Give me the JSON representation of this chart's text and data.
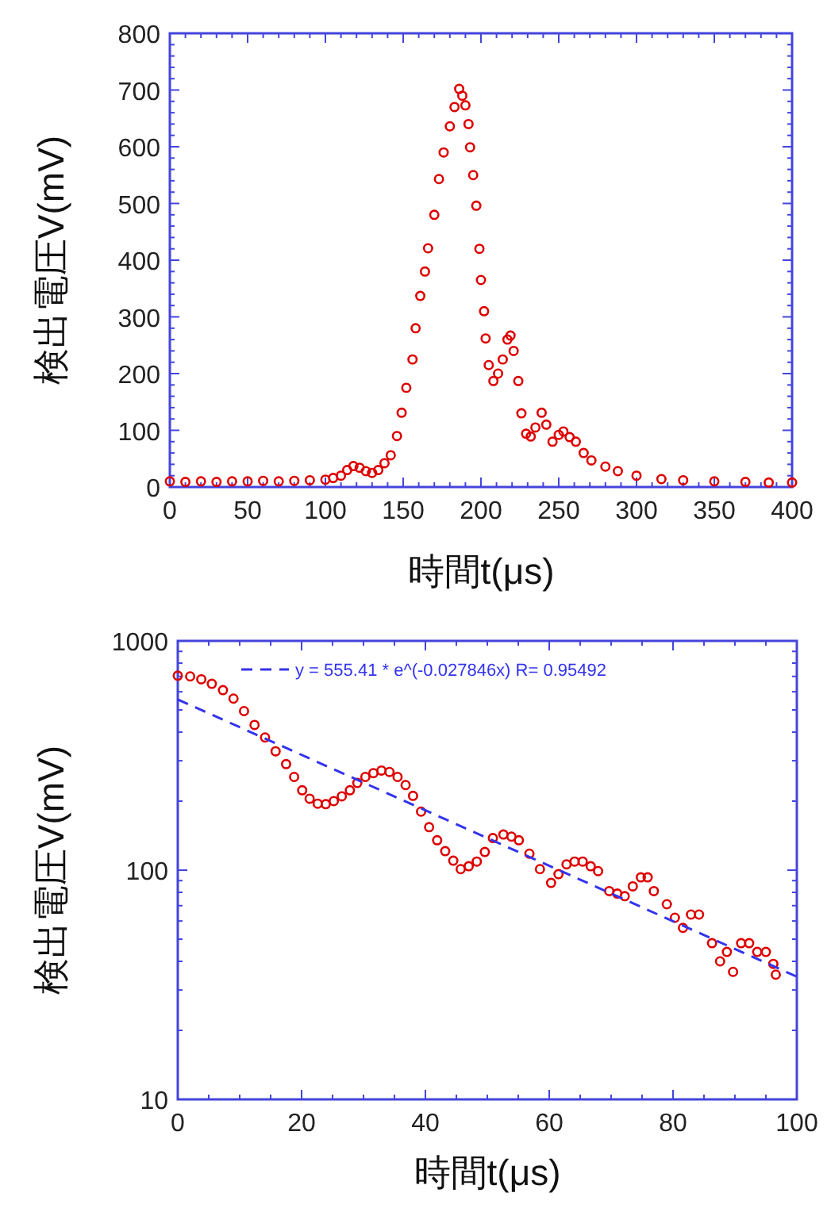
{
  "chart_data": [
    {
      "type": "scatter",
      "xlabel": "時間t(μs)",
      "ylabel": "検出電圧V(mV)",
      "xlim": [
        0,
        400
      ],
      "ylim": [
        0,
        800
      ],
      "xticks": [
        0,
        50,
        100,
        150,
        200,
        250,
        300,
        350,
        400
      ],
      "yticks": [
        0,
        100,
        200,
        300,
        400,
        500,
        600,
        700,
        800
      ],
      "marker": "circle",
      "legend": false,
      "series": [
        {
          "color": "#dd0000",
          "x": [
            0,
            10,
            20,
            30,
            40,
            50,
            60,
            70,
            80,
            90,
            100,
            105,
            110,
            114,
            118,
            122,
            126,
            130,
            134,
            138,
            142,
            146,
            149,
            152,
            156,
            158,
            161,
            164,
            166,
            170,
            173,
            176,
            180,
            183,
            186,
            188,
            190,
            192,
            193,
            195,
            197,
            199,
            200,
            202,
            203,
            205,
            208,
            211,
            214,
            217,
            219,
            221,
            224,
            226,
            229,
            232,
            235,
            239,
            242,
            246,
            250,
            253,
            257,
            261,
            266,
            271,
            280,
            288,
            300,
            316,
            330,
            350,
            370,
            385,
            400
          ],
          "values": [
            10,
            9,
            10,
            9,
            10,
            10,
            11,
            10,
            11,
            12,
            13,
            16,
            20,
            30,
            37,
            34,
            28,
            25,
            30,
            42,
            56,
            90,
            131,
            175,
            225,
            280,
            337,
            380,
            421,
            480,
            543,
            590,
            636,
            670,
            702,
            690,
            673,
            640,
            599,
            550,
            496,
            420,
            365,
            310,
            262,
            215,
            187,
            200,
            225,
            260,
            267,
            240,
            187,
            130,
            94,
            89,
            105,
            131,
            110,
            80,
            92,
            98,
            88,
            80,
            60,
            47,
            36,
            28,
            20,
            14,
            12,
            10,
            9,
            8,
            8
          ]
        }
      ]
    },
    {
      "type": "scatter",
      "xlabel": "時間t(μs)",
      "ylabel": "検出電圧V(mV)",
      "xlim": [
        0,
        100
      ],
      "ylim": [
        10,
        1000
      ],
      "xticks": [
        0,
        20,
        40,
        60,
        80,
        100
      ],
      "yticks": [
        10,
        100,
        1000
      ],
      "log": "y",
      "marker": "circle",
      "legend": "top",
      "series": [
        {
          "color": "#dd0000",
          "x": [
            0,
            2,
            3.8,
            5.5,
            7.3,
            9,
            10.7,
            12.4,
            14.1,
            15.8,
            17.5,
            18.8,
            20.1,
            21.3,
            22.6,
            23.9,
            25.2,
            26.5,
            27.8,
            29,
            30.3,
            31.6,
            32.9,
            34.2,
            35.5,
            36.8,
            38,
            39.3,
            40.6,
            41.9,
            43.2,
            44.5,
            45.7,
            47,
            48.3,
            49.6,
            50.9,
            52.6,
            53.9,
            55.1,
            56.8,
            58.5,
            60.3,
            61.5,
            62.8,
            64.1,
            65.4,
            66.7,
            67.9,
            69.7,
            71,
            72.2,
            73.5,
            74.8,
            75.9,
            76.9,
            79,
            80.3,
            81.6,
            82.9,
            84.2,
            86.3,
            87.6,
            88.7,
            89.7,
            91,
            92.3,
            93.6,
            95,
            96.2,
            96.6
          ],
          "values": [
            705,
            700,
            680,
            650,
            610,
            560,
            494,
            430,
            379,
            330,
            290,
            255,
            223,
            205,
            195,
            194,
            200,
            210,
            223,
            240,
            255,
            265,
            272,
            268,
            255,
            235,
            211,
            180,
            154,
            135,
            121,
            110,
            101,
            104,
            109,
            120,
            138,
            143,
            140,
            135,
            118,
            101,
            88,
            96,
            106,
            109,
            109,
            104,
            99,
            81,
            79,
            77,
            85,
            93,
            93,
            81,
            71,
            62,
            56,
            64,
            64,
            48,
            40,
            44,
            36,
            48,
            48,
            44,
            44,
            39,
            35
          ]
        },
        {
          "type": "line",
          "name": "y = 555.41 * e^(-0.027846x)  R= 0.95492",
          "color": "#3333ee",
          "line_style": "dashed",
          "marker": "none",
          "x": [
            0,
            100
          ],
          "values": [
            555.41,
            34.3
          ]
        }
      ]
    }
  ]
}
